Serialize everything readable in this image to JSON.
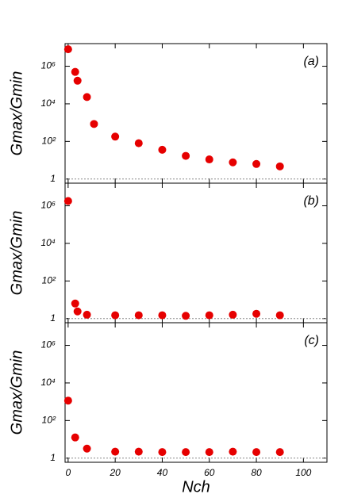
{
  "chart_data": [
    {
      "type": "scatter",
      "label": "(a)",
      "ylabel": "Gmax/Gmin",
      "log_y": true,
      "color": "#e60000",
      "x": [
        0,
        3,
        4,
        8,
        11,
        20,
        30,
        40,
        50,
        60,
        70,
        80,
        90
      ],
      "values": [
        8000000,
        500000,
        170000,
        23000,
        850,
        180,
        80,
        36,
        17,
        11,
        7.7,
        6.3,
        4.7
      ],
      "xlim": [
        -1.3,
        110
      ],
      "xticks": [
        0,
        20,
        40,
        60,
        80,
        100
      ],
      "ylim": [
        0.6,
        16000000
      ],
      "yticks": [
        1,
        {
          "value": 100,
          "label": "10²"
        },
        {
          "value": 10000,
          "label": "10⁴"
        },
        {
          "value": 1000000,
          "label": "10⁶"
        }
      ],
      "hline": 1
    },
    {
      "type": "scatter",
      "label": "(b)",
      "ylabel": "Gmax/Gmin",
      "log_y": true,
      "color": "#e60000",
      "x": [
        0,
        3,
        4,
        8,
        20,
        30,
        40,
        50,
        60,
        70,
        80,
        90
      ],
      "values": [
        1800000,
        6.3,
        2.4,
        1.6,
        1.5,
        1.5,
        1.5,
        1.4,
        1.5,
        1.6,
        1.8,
        1.5
      ],
      "xlim": [
        -1.3,
        110
      ],
      "xticks": [
        0,
        20,
        40,
        60,
        80,
        100
      ],
      "ylim": [
        0.6,
        16000000
      ],
      "yticks": [
        1,
        {
          "value": 100,
          "label": "10²"
        },
        {
          "value": 10000,
          "label": "10⁴"
        },
        {
          "value": 1000000,
          "label": "10⁶"
        }
      ],
      "hline": 1
    },
    {
      "type": "scatter",
      "label": "(c)",
      "ylabel": "Gmax/Gmin",
      "xlabel": "Nch",
      "log_y": true,
      "color": "#e60000",
      "x": [
        0,
        3,
        8,
        20,
        30,
        40,
        50,
        60,
        70,
        80,
        90
      ],
      "values": [
        1150,
        12.6,
        3.2,
        2.2,
        2.2,
        2.1,
        2.1,
        2.1,
        2.2,
        2.1,
        2.1
      ],
      "xlim": [
        -1.3,
        110
      ],
      "xticks": [
        0,
        20,
        40,
        60,
        80,
        100
      ],
      "ylim": [
        0.6,
        16000000
      ],
      "yticks": [
        1,
        {
          "value": 100,
          "label": "10²"
        },
        {
          "value": 10000,
          "label": "10⁴"
        },
        {
          "value": 1000000,
          "label": "10⁶"
        }
      ],
      "hline": 1
    }
  ]
}
